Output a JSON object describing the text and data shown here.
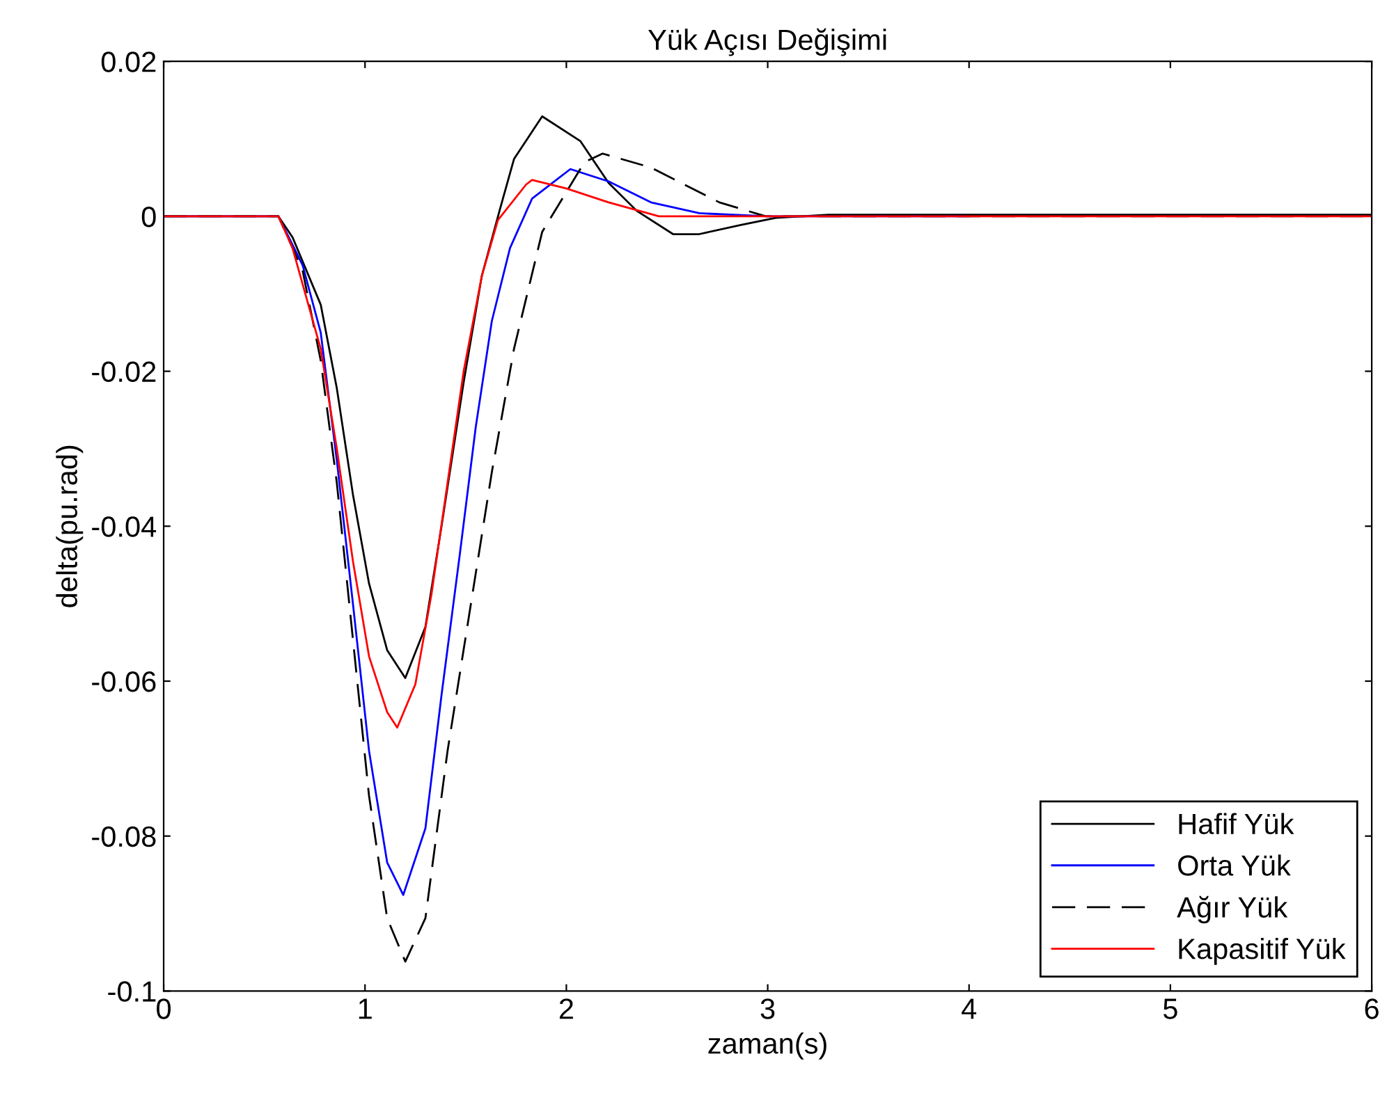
{
  "chart_data": {
    "type": "line",
    "title": "Yük Açısı Değişimi",
    "xlabel": "zaman(s)",
    "ylabel": "delta(pu.rad)",
    "xlim": [
      0,
      6
    ],
    "ylim": [
      -0.1,
      0.02
    ],
    "xticks": [
      0,
      1,
      2,
      3,
      4,
      5,
      6
    ],
    "yticks": [
      -0.1,
      -0.08,
      -0.06,
      -0.04,
      -0.02,
      0,
      0.02
    ],
    "grid": false,
    "legend": "bottom right",
    "marker": "none",
    "series": [
      {
        "name": "Hafif Yük",
        "color": "#000000",
        "line_style": "solid",
        "x": [
          0,
          0.57,
          0.64,
          0.78,
          0.86,
          0.94,
          1.02,
          1.11,
          1.2,
          1.3,
          1.38,
          1.49,
          1.58,
          1.67,
          1.74,
          1.88,
          2.07,
          2.21,
          2.35,
          2.53,
          2.66,
          2.87,
          3.04,
          3.3,
          4,
          5,
          6
        ],
        "values": [
          0,
          0,
          -0.0027,
          -0.0114,
          -0.0222,
          -0.0359,
          -0.0474,
          -0.056,
          -0.0596,
          -0.053,
          -0.04,
          -0.0214,
          -0.0077,
          0.0009,
          0.0074,
          0.0129,
          0.0097,
          0.0043,
          0.0007,
          -0.0023,
          -0.0023,
          -0.0011,
          -0.0002,
          0.0002,
          0.0002,
          0.0002,
          0.0002
        ]
      },
      {
        "name": "Orta Yük",
        "color": "#0000ff",
        "line_style": "solid",
        "x": [
          0,
          0.57,
          0.69,
          0.78,
          0.86,
          0.94,
          1.02,
          1.11,
          1.19,
          1.3,
          1.38,
          1.47,
          1.55,
          1.63,
          1.72,
          1.83,
          2.02,
          2.21,
          2.42,
          2.66,
          3,
          4
        ],
        "values": [
          0,
          0,
          -0.0063,
          -0.015,
          -0.0315,
          -0.05,
          -0.069,
          -0.0834,
          -0.0876,
          -0.079,
          -0.0618,
          -0.0438,
          -0.0272,
          -0.0135,
          -0.0041,
          0.0023,
          0.0061,
          0.0045,
          0.0018,
          0.0004,
          0,
          0
        ]
      },
      {
        "name": "Ağır Yük",
        "color": "#000000",
        "line_style": "dashed",
        "x": [
          0,
          0.57,
          0.69,
          0.78,
          0.86,
          0.94,
          1.02,
          1.11,
          1.2,
          1.3,
          1.41,
          1.52,
          1.63,
          1.74,
          1.88,
          2.09,
          2.18,
          2.42,
          2.76,
          2.99,
          4,
          5,
          6
        ],
        "values": [
          0,
          0,
          -0.007,
          -0.0186,
          -0.0344,
          -0.0546,
          -0.0748,
          -0.0906,
          -0.0962,
          -0.0906,
          -0.069,
          -0.051,
          -0.033,
          -0.0171,
          -0.002,
          0.007,
          0.0081,
          0.0063,
          0.0018,
          0,
          0,
          0,
          0
        ]
      },
      {
        "name": "Kapasitif Yük",
        "color": "#ff0000",
        "line_style": "solid",
        "x": [
          0,
          0.57,
          0.64,
          0.78,
          0.86,
          0.94,
          1.02,
          1.11,
          1.16,
          1.25,
          1.33,
          1.41,
          1.49,
          1.58,
          1.66,
          1.8,
          1.83,
          2.0,
          2.21,
          2.46,
          3,
          4,
          5,
          6
        ],
        "values": [
          0,
          0,
          -0.0041,
          -0.0171,
          -0.03,
          -0.0445,
          -0.0568,
          -0.064,
          -0.066,
          -0.0604,
          -0.0488,
          -0.0344,
          -0.02,
          -0.0077,
          -0.0005,
          0.0041,
          0.0047,
          0.0036,
          0.0018,
          0,
          0,
          0,
          0,
          0
        ]
      }
    ]
  }
}
